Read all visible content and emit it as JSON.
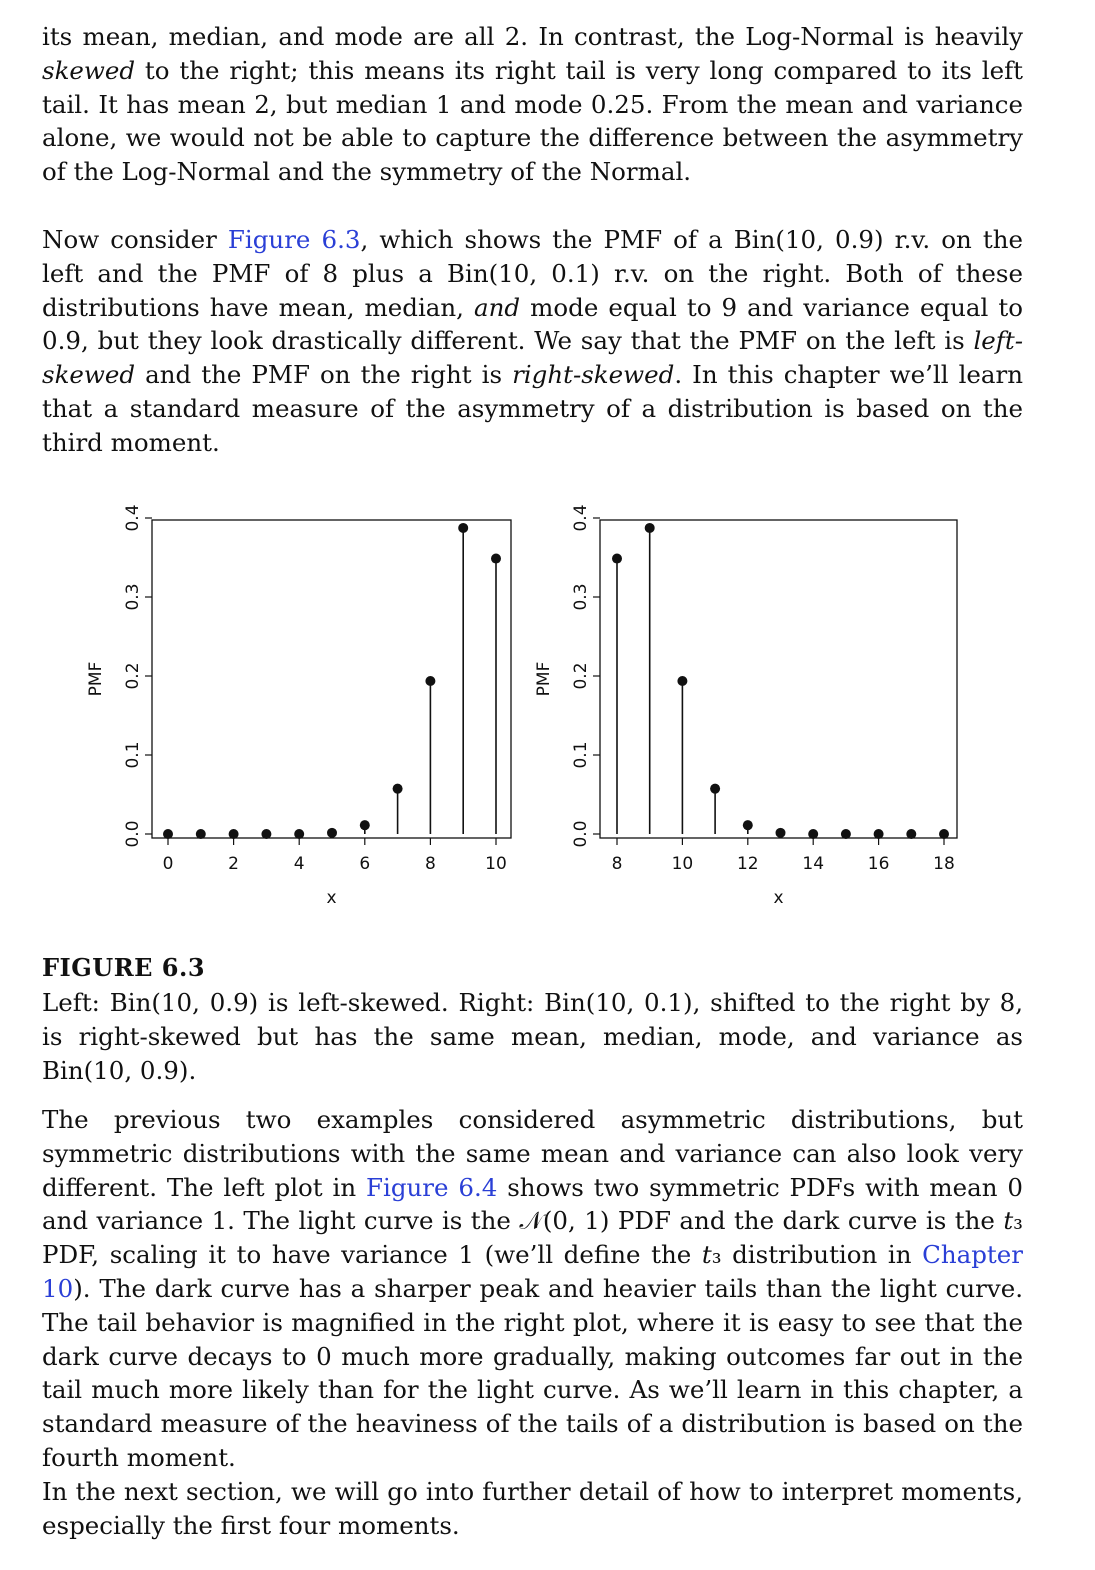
{
  "paragraphs": {
    "p1": [
      {
        "t": "its mean, median, and mode are all 2. In contrast, the Log-Normal is heavily "
      },
      {
        "t": "skewed",
        "style": "i"
      },
      {
        "t": " to the right; this means its right tail is very long compared to its left tail. It has mean 2, but median 1 and mode 0.25. From the mean and variance alone, we would not be able to capture the difference between the asymmetry of the Log-Normal and the symmetry of the Normal."
      }
    ],
    "p2": [
      {
        "t": "Now consider "
      },
      {
        "t": "Figure 6.3",
        "style": "link"
      },
      {
        "t": ", which shows the PMF of a Bin(10, 0.9) r.v. on the left and the PMF of 8 plus a Bin(10, 0.1) r.v. on the right. Both of these distributions have mean, median, "
      },
      {
        "t": "and",
        "style": "i"
      },
      {
        "t": " mode equal to 9 and variance equal to 0.9, but they look drastically different. We say that the PMF on the left is "
      },
      {
        "t": "left-skewed",
        "style": "i"
      },
      {
        "t": " and the PMF on the right is "
      },
      {
        "t": "right-skewed",
        "style": "i"
      },
      {
        "t": ". In this chapter we’ll learn that a standard measure of the asymmetry of a distribution is based on the third moment."
      }
    ],
    "p3": [
      {
        "t": "The previous two examples considered asymmetric distributions, but symmetric distributions with the same mean and variance can also look very different. The left plot in "
      },
      {
        "t": "Figure 6.4",
        "style": "link"
      },
      {
        "t": " shows two symmetric PDFs with mean 0 and variance 1. The light curve is the 𝒩(0, 1) PDF and the dark curve is the "
      },
      {
        "t": "t",
        "style": "i"
      },
      {
        "t": "₃ PDF, scaling it to have variance 1 (we’ll define the "
      },
      {
        "t": "t",
        "style": "i"
      },
      {
        "t": "₃ distribution in "
      },
      {
        "t": "Chapter 10",
        "style": "link"
      },
      {
        "t": "). The dark curve has a sharper peak and heavier tails than the light curve. The tail behavior is magnified in the right plot, where it is easy to see that the dark curve decays to 0 much more gradually, making outcomes far out in the tail much more likely than for the light curve. As we’ll learn in this chapter, a standard measure of the heaviness of the tails of a distribution is based on the fourth moment."
      }
    ],
    "p4": [
      {
        "t": "In the next section, we will go into further detail of how to interpret moments, especially the first four moments."
      }
    ]
  },
  "figure": {
    "title": "FIGURE 6.3",
    "caption": "Left: Bin(10, 0.9) is left-skewed. Right: Bin(10, 0.1), shifted to the right by 8, is right-skewed but has the same mean, median, mode, and variance as Bin(10, 0.9)."
  },
  "chart_data": [
    {
      "type": "scatter",
      "style": "stem",
      "xlabel": "x",
      "ylabel": "PMF",
      "x": [
        0,
        1,
        2,
        3,
        4,
        5,
        6,
        7,
        8,
        9,
        10
      ],
      "y": [
        0.0,
        0.0,
        0.0,
        0.0,
        0.0,
        0.0015,
        0.0112,
        0.0574,
        0.1937,
        0.3874,
        0.3487
      ],
      "xticks": [
        "0",
        "2",
        "4",
        "6",
        "8",
        "10"
      ],
      "yticks": [
        "0.0",
        "0.1",
        "0.2",
        "0.3",
        "0.4"
      ],
      "xlim": [
        0,
        10
      ],
      "ylim": [
        0,
        0.4
      ]
    },
    {
      "type": "scatter",
      "style": "stem",
      "xlabel": "x",
      "ylabel": "PMF",
      "x": [
        8,
        9,
        10,
        11,
        12,
        13,
        14,
        15,
        16,
        17,
        18
      ],
      "y": [
        0.3487,
        0.3874,
        0.1937,
        0.0574,
        0.0112,
        0.0015,
        0.0,
        0.0,
        0.0,
        0.0,
        0.0
      ],
      "xticks": [
        "8",
        "10",
        "12",
        "14",
        "16",
        "18"
      ],
      "yticks": [
        "0.0",
        "0.1",
        "0.2",
        "0.3",
        "0.4"
      ],
      "xlim": [
        8,
        18
      ],
      "ylim": [
        0,
        0.4
      ]
    }
  ]
}
